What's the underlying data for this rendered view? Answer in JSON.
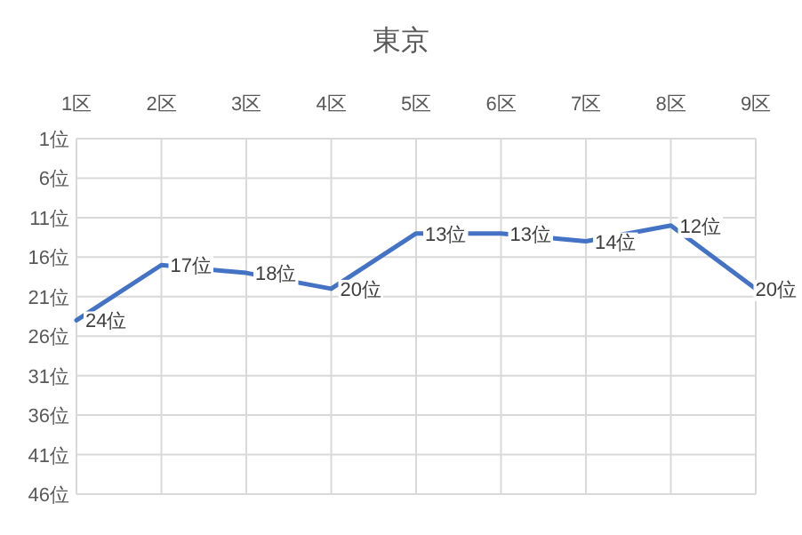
{
  "chart_data": {
    "type": "line",
    "title": "東京",
    "categories": [
      "1区",
      "2区",
      "3区",
      "4区",
      "5区",
      "6区",
      "7区",
      "8区",
      "9区"
    ],
    "series": [
      {
        "color": "#4472c4",
        "values": [
          24,
          17,
          18,
          20,
          13,
          13,
          14,
          12,
          20
        ],
        "value_labels": [
          "24位",
          "17位",
          "18位",
          "20位",
          "13位",
          "13位",
          "14位",
          "12位",
          "20位"
        ]
      }
    ],
    "ylim": [
      46,
      1
    ],
    "yticks": [
      {
        "value": 1,
        "label": "1位"
      },
      {
        "value": 6,
        "label": "6位"
      },
      {
        "value": 11,
        "label": "11位"
      },
      {
        "value": 16,
        "label": "16位"
      },
      {
        "value": 21,
        "label": "21位"
      },
      {
        "value": 26,
        "label": "26位"
      },
      {
        "value": 31,
        "label": "31位"
      },
      {
        "value": 36,
        "label": "36位"
      },
      {
        "value": 41,
        "label": "41位"
      },
      {
        "value": 46,
        "label": "46位"
      }
    ],
    "grid": true,
    "marker": "none",
    "line_style": "solid"
  }
}
